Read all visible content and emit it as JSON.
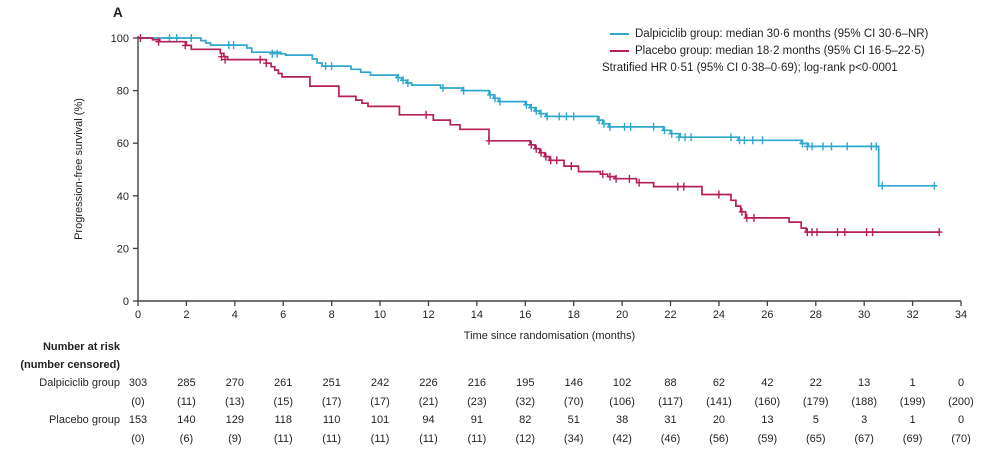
{
  "panel_label": "A",
  "colors": {
    "dalpiciclib": "#2fa8cd",
    "placebo": "#b62058",
    "axis": "#414042",
    "text": "#231f20"
  },
  "legend": {
    "items": [
      {
        "label": "Dalpiciclib group: median 30·6 months (95% CI 30·6–NR)",
        "series": "dalpiciclib"
      },
      {
        "label": "Placebo group: median 18·2 months (95% CI 16·5–22·5)",
        "series": "placebo"
      }
    ],
    "note": "Stratified HR 0·51 (95% CI 0·38–0·69); log-rank p<0·0001"
  },
  "chart_data": {
    "type": "line",
    "subtype": "kaplan-meier-step",
    "title": "",
    "xlabel": "Time since randomisation (months)",
    "ylabel": "Progression-free survival (%)",
    "xlim": [
      0,
      34
    ],
    "ylim": [
      0,
      100
    ],
    "x_ticks": [
      0,
      2,
      4,
      6,
      8,
      10,
      12,
      14,
      16,
      18,
      20,
      22,
      24,
      26,
      28,
      30,
      32,
      34
    ],
    "y_ticks": [
      0,
      20,
      40,
      60,
      80,
      100
    ],
    "grid": false,
    "legend_position": "top-right",
    "series": [
      {
        "name": "Dalpiciclib group",
        "color_key": "dalpiciclib",
        "median_months": "30·6",
        "median_ci": "30·6–NR",
        "end_month": 33.0,
        "steps": [
          [
            0,
            100
          ],
          [
            2.6,
            99.0
          ],
          [
            2.8,
            98.1
          ],
          [
            3.0,
            97.3
          ],
          [
            4.5,
            96.2
          ],
          [
            4.7,
            94.6
          ],
          [
            5.9,
            94.0
          ],
          [
            6.1,
            93.5
          ],
          [
            7.2,
            92.0
          ],
          [
            7.4,
            90.5
          ],
          [
            7.6,
            89.3
          ],
          [
            8.8,
            88.1
          ],
          [
            9.2,
            87.0
          ],
          [
            9.6,
            85.9
          ],
          [
            10.7,
            84.9
          ],
          [
            10.9,
            83.9
          ],
          [
            11.1,
            82.9
          ],
          [
            11.3,
            82.1
          ],
          [
            12.5,
            81.0
          ],
          [
            13.4,
            80.0
          ],
          [
            14.5,
            78.4
          ],
          [
            14.7,
            77.1
          ],
          [
            14.9,
            75.8
          ],
          [
            16.0,
            74.6
          ],
          [
            16.2,
            73.5
          ],
          [
            16.4,
            72.3
          ],
          [
            16.6,
            71.2
          ],
          [
            16.85,
            70.2
          ],
          [
            19.0,
            68.8
          ],
          [
            19.2,
            67.4
          ],
          [
            19.45,
            66.2
          ],
          [
            21.7,
            64.9
          ],
          [
            22.0,
            63.6
          ],
          [
            22.4,
            62.3
          ],
          [
            24.8,
            61.1
          ],
          [
            27.4,
            59.9
          ],
          [
            27.7,
            58.8
          ],
          [
            30.6,
            43.8
          ]
        ],
        "censor_marks": [
          [
            1.3,
            100
          ],
          [
            1.6,
            100
          ],
          [
            2.2,
            100
          ],
          [
            3.75,
            97.3
          ],
          [
            3.95,
            97.3
          ],
          [
            5.55,
            94.0
          ],
          [
            5.75,
            94.0
          ],
          [
            7.75,
            89.3
          ],
          [
            8.0,
            89.3
          ],
          [
            10.75,
            84.9
          ],
          [
            10.95,
            83.9
          ],
          [
            11.15,
            82.9
          ],
          [
            12.6,
            81.0
          ],
          [
            13.45,
            80.0
          ],
          [
            14.55,
            78.4
          ],
          [
            14.75,
            77.1
          ],
          [
            14.95,
            75.8
          ],
          [
            16.05,
            74.6
          ],
          [
            16.25,
            73.5
          ],
          [
            16.45,
            72.3
          ],
          [
            16.65,
            71.2
          ],
          [
            16.9,
            70.2
          ],
          [
            17.4,
            70.2
          ],
          [
            17.7,
            70.2
          ],
          [
            18.0,
            70.2
          ],
          [
            19.05,
            68.8
          ],
          [
            19.25,
            67.4
          ],
          [
            19.5,
            66.2
          ],
          [
            20.1,
            66.2
          ],
          [
            20.35,
            66.2
          ],
          [
            21.3,
            66.2
          ],
          [
            21.75,
            64.9
          ],
          [
            22.05,
            63.6
          ],
          [
            22.35,
            62.3
          ],
          [
            22.6,
            62.3
          ],
          [
            22.85,
            62.3
          ],
          [
            24.5,
            62.3
          ],
          [
            24.85,
            61.1
          ],
          [
            25.05,
            61.1
          ],
          [
            25.4,
            61.1
          ],
          [
            25.8,
            61.1
          ],
          [
            27.45,
            59.9
          ],
          [
            27.65,
            58.8
          ],
          [
            27.85,
            58.8
          ],
          [
            28.3,
            58.8
          ],
          [
            28.65,
            58.8
          ],
          [
            29.3,
            58.8
          ],
          [
            30.3,
            58.8
          ],
          [
            30.5,
            58.8
          ],
          [
            30.75,
            43.8
          ],
          [
            32.9,
            43.8
          ]
        ]
      },
      {
        "name": "Placebo group",
        "color_key": "placebo",
        "median_months": "18·2",
        "median_ci": "16·5–22·5",
        "end_month": 33.1,
        "steps": [
          [
            0,
            100
          ],
          [
            0.6,
            99.3
          ],
          [
            0.9,
            98.6
          ],
          [
            2.0,
            97.2
          ],
          [
            2.2,
            95.7
          ],
          [
            3.4,
            94.2
          ],
          [
            3.55,
            92.9
          ],
          [
            3.7,
            91.8
          ],
          [
            5.3,
            90.4
          ],
          [
            5.5,
            89.1
          ],
          [
            5.65,
            87.8
          ],
          [
            5.8,
            86.5
          ],
          [
            5.95,
            85.2
          ],
          [
            7.1,
            81.7
          ],
          [
            8.3,
            77.8
          ],
          [
            9.0,
            76.4
          ],
          [
            9.25,
            75.2
          ],
          [
            9.5,
            74.0
          ],
          [
            10.8,
            70.8
          ],
          [
            12.2,
            68.8
          ],
          [
            12.9,
            67.0
          ],
          [
            13.3,
            65.3
          ],
          [
            14.5,
            60.9
          ],
          [
            16.2,
            59.4
          ],
          [
            16.4,
            57.9
          ],
          [
            16.6,
            56.4
          ],
          [
            16.8,
            54.9
          ],
          [
            17.0,
            53.5
          ],
          [
            17.6,
            51.3
          ],
          [
            18.2,
            49.2
          ],
          [
            19.1,
            48.2
          ],
          [
            19.4,
            47.3
          ],
          [
            19.7,
            46.5
          ],
          [
            20.6,
            45.0
          ],
          [
            21.3,
            43.5
          ],
          [
            23.3,
            40.5
          ],
          [
            24.5,
            38.3
          ],
          [
            24.7,
            36.1
          ],
          [
            24.9,
            33.9
          ],
          [
            25.1,
            31.6
          ],
          [
            26.9,
            30.0
          ],
          [
            27.4,
            27.7
          ],
          [
            27.6,
            26.2
          ]
        ],
        "censor_marks": [
          [
            0.1,
            100
          ],
          [
            0.85,
            98.6
          ],
          [
            1.95,
            97.2
          ],
          [
            3.45,
            92.9
          ],
          [
            3.6,
            91.8
          ],
          [
            5.05,
            91.8
          ],
          [
            5.3,
            90.4
          ],
          [
            11.9,
            70.8
          ],
          [
            14.5,
            60.9
          ],
          [
            16.25,
            59.4
          ],
          [
            16.45,
            57.9
          ],
          [
            16.65,
            56.4
          ],
          [
            16.85,
            54.9
          ],
          [
            17.05,
            53.5
          ],
          [
            17.3,
            53.5
          ],
          [
            17.9,
            51.3
          ],
          [
            19.2,
            48.2
          ],
          [
            19.5,
            47.3
          ],
          [
            19.75,
            46.5
          ],
          [
            20.3,
            46.5
          ],
          [
            20.7,
            45.0
          ],
          [
            22.3,
            43.5
          ],
          [
            22.55,
            43.5
          ],
          [
            24.0,
            40.5
          ],
          [
            24.95,
            33.9
          ],
          [
            25.15,
            31.6
          ],
          [
            25.45,
            31.6
          ],
          [
            27.65,
            26.2
          ],
          [
            27.85,
            26.2
          ],
          [
            28.05,
            26.2
          ],
          [
            28.9,
            26.2
          ],
          [
            29.2,
            26.2
          ],
          [
            30.1,
            26.2
          ],
          [
            30.35,
            26.2
          ],
          [
            33.1,
            26.2
          ]
        ]
      }
    ],
    "number_at_risk": {
      "header_line1": "Number at risk",
      "header_line2": "(number censored)",
      "months": [
        0,
        2,
        4,
        6,
        8,
        10,
        12,
        14,
        16,
        18,
        20,
        22,
        24,
        26,
        28,
        30,
        32,
        34
      ],
      "rows": [
        {
          "label": "Dalpiciclib group",
          "at_risk": [
            303,
            285,
            270,
            261,
            251,
            242,
            226,
            216,
            195,
            146,
            102,
            88,
            62,
            42,
            22,
            13,
            1,
            0
          ],
          "censored": [
            0,
            11,
            13,
            15,
            17,
            17,
            21,
            23,
            32,
            70,
            106,
            117,
            141,
            160,
            179,
            188,
            199,
            200
          ]
        },
        {
          "label": "Placebo group",
          "at_risk": [
            153,
            140,
            129,
            118,
            110,
            101,
            94,
            91,
            82,
            51,
            38,
            31,
            20,
            13,
            5,
            3,
            1,
            0
          ],
          "censored": [
            0,
            6,
            9,
            11,
            11,
            11,
            11,
            11,
            12,
            34,
            42,
            46,
            56,
            59,
            65,
            67,
            69,
            70
          ]
        }
      ]
    }
  }
}
